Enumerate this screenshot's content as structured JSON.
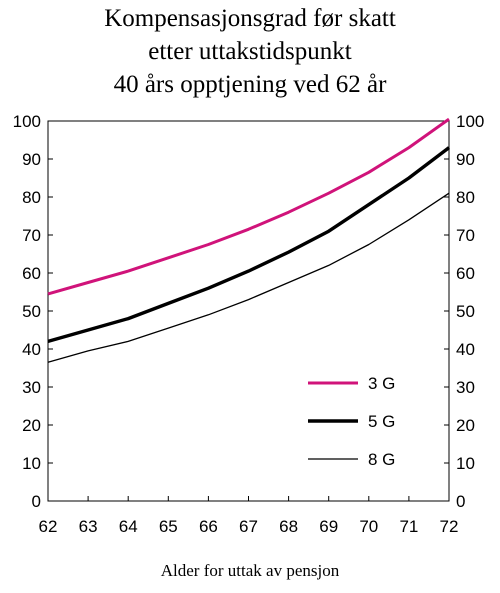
{
  "chart_data": {
    "type": "line",
    "title_lines": [
      "Kompensasjonsgrad før skatt",
      "etter uttakstidspunkt",
      "40 års opptjening ved 62 år"
    ],
    "xlabel": "Alder for uttak av pensjon",
    "ylabel": "",
    "x": [
      62,
      63,
      64,
      65,
      66,
      67,
      68,
      69,
      70,
      71,
      72
    ],
    "xlim": [
      62,
      72
    ],
    "ylim": [
      0,
      100
    ],
    "yticks": [
      0,
      10,
      20,
      30,
      40,
      50,
      60,
      70,
      80,
      90,
      100
    ],
    "grid": false,
    "legend_position": "bottom-right",
    "series": [
      {
        "name": "3 G",
        "color": "#d0137a",
        "values": [
          54.5,
          57.5,
          60.5,
          64.0,
          67.5,
          71.5,
          76.0,
          81.0,
          86.5,
          93.0,
          100.5
        ]
      },
      {
        "name": "5 G",
        "color": "#000000",
        "values": [
          42.0,
          45.0,
          48.0,
          52.0,
          56.0,
          60.5,
          65.5,
          71.0,
          78.0,
          85.0,
          93.0
        ]
      },
      {
        "name": "8 G",
        "color": "#000000",
        "values": [
          36.5,
          39.5,
          42.0,
          45.5,
          49.0,
          53.0,
          57.5,
          62.0,
          67.5,
          74.0,
          81.0
        ]
      }
    ]
  }
}
